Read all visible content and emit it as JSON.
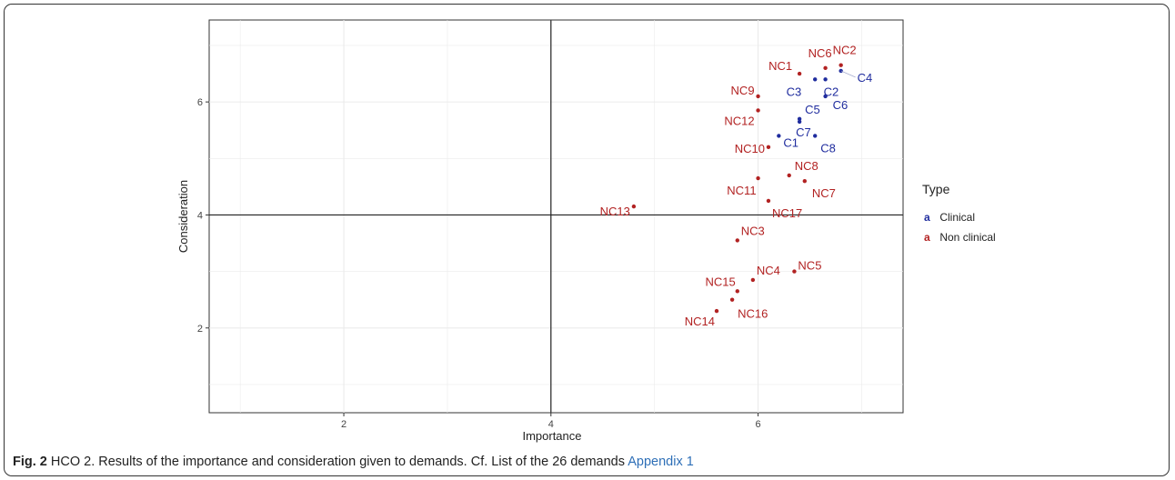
{
  "caption": {
    "fig_label": "Fig. 2",
    "text": " HCO 2. Results of the importance and consideration given to demands. Cf. List of the 26 demands ",
    "link": "Appendix 1"
  },
  "colors": {
    "clinical": "#1f2c9e",
    "nonclinical": "#b22222",
    "panel_bg": "#ffffff",
    "grid": "#ebebeb",
    "refline": "#222222"
  },
  "legend": {
    "title": "Type",
    "items": [
      {
        "key": "a",
        "label": "Clinical",
        "color": "#1f2c9e"
      },
      {
        "key": "a",
        "label": "Non clinical",
        "color": "#b22222"
      }
    ]
  },
  "chart_data": {
    "type": "scatter",
    "xlabel": "Importance",
    "ylabel": "Consideration",
    "xlim": [
      0.7,
      7.4
    ],
    "ylim": [
      0.5,
      7.45
    ],
    "xticks": [
      2,
      4,
      6
    ],
    "yticks": [
      2,
      4,
      6
    ],
    "xtick_labels": [
      "2",
      "4",
      "6"
    ],
    "ytick_labels": [
      "2",
      "4",
      "6"
    ],
    "reference_lines": {
      "x": 4,
      "y": 4
    },
    "grid": true,
    "legend_position": "right",
    "series": [
      {
        "name": "Clinical",
        "points": [
          {
            "label": "C1",
            "x": 6.2,
            "y": 5.4
          },
          {
            "label": "C2",
            "x": 6.65,
            "y": 6.4
          },
          {
            "label": "C3",
            "x": 6.55,
            "y": 6.4
          },
          {
            "label": "C4",
            "x": 6.8,
            "y": 6.55
          },
          {
            "label": "C5",
            "x": 6.4,
            "y": 5.7
          },
          {
            "label": "C6",
            "x": 6.65,
            "y": 6.1
          },
          {
            "label": "C7",
            "x": 6.4,
            "y": 5.65
          },
          {
            "label": "C8",
            "x": 6.55,
            "y": 5.4
          }
        ]
      },
      {
        "name": "Non clinical",
        "points": [
          {
            "label": "NC1",
            "x": 6.4,
            "y": 6.5
          },
          {
            "label": "NC2",
            "x": 6.8,
            "y": 6.65
          },
          {
            "label": "NC3",
            "x": 5.8,
            "y": 3.55
          },
          {
            "label": "NC4",
            "x": 5.95,
            "y": 2.85
          },
          {
            "label": "NC5",
            "x": 6.35,
            "y": 3.0
          },
          {
            "label": "NC6",
            "x": 6.65,
            "y": 6.6
          },
          {
            "label": "NC7",
            "x": 6.45,
            "y": 4.6
          },
          {
            "label": "NC8",
            "x": 6.3,
            "y": 4.7
          },
          {
            "label": "NC9",
            "x": 6.0,
            "y": 6.1
          },
          {
            "label": "NC10",
            "x": 6.1,
            "y": 5.2
          },
          {
            "label": "NC11",
            "x": 6.0,
            "y": 4.65
          },
          {
            "label": "NC12",
            "x": 6.0,
            "y": 5.85
          },
          {
            "label": "NC13",
            "x": 4.8,
            "y": 4.15
          },
          {
            "label": "NC14",
            "x": 5.6,
            "y": 2.3
          },
          {
            "label": "NC15",
            "x": 5.8,
            "y": 2.65
          },
          {
            "label": "NC16",
            "x": 5.75,
            "y": 2.5
          },
          {
            "label": "NC17",
            "x": 6.1,
            "y": 4.25
          }
        ]
      }
    ]
  }
}
